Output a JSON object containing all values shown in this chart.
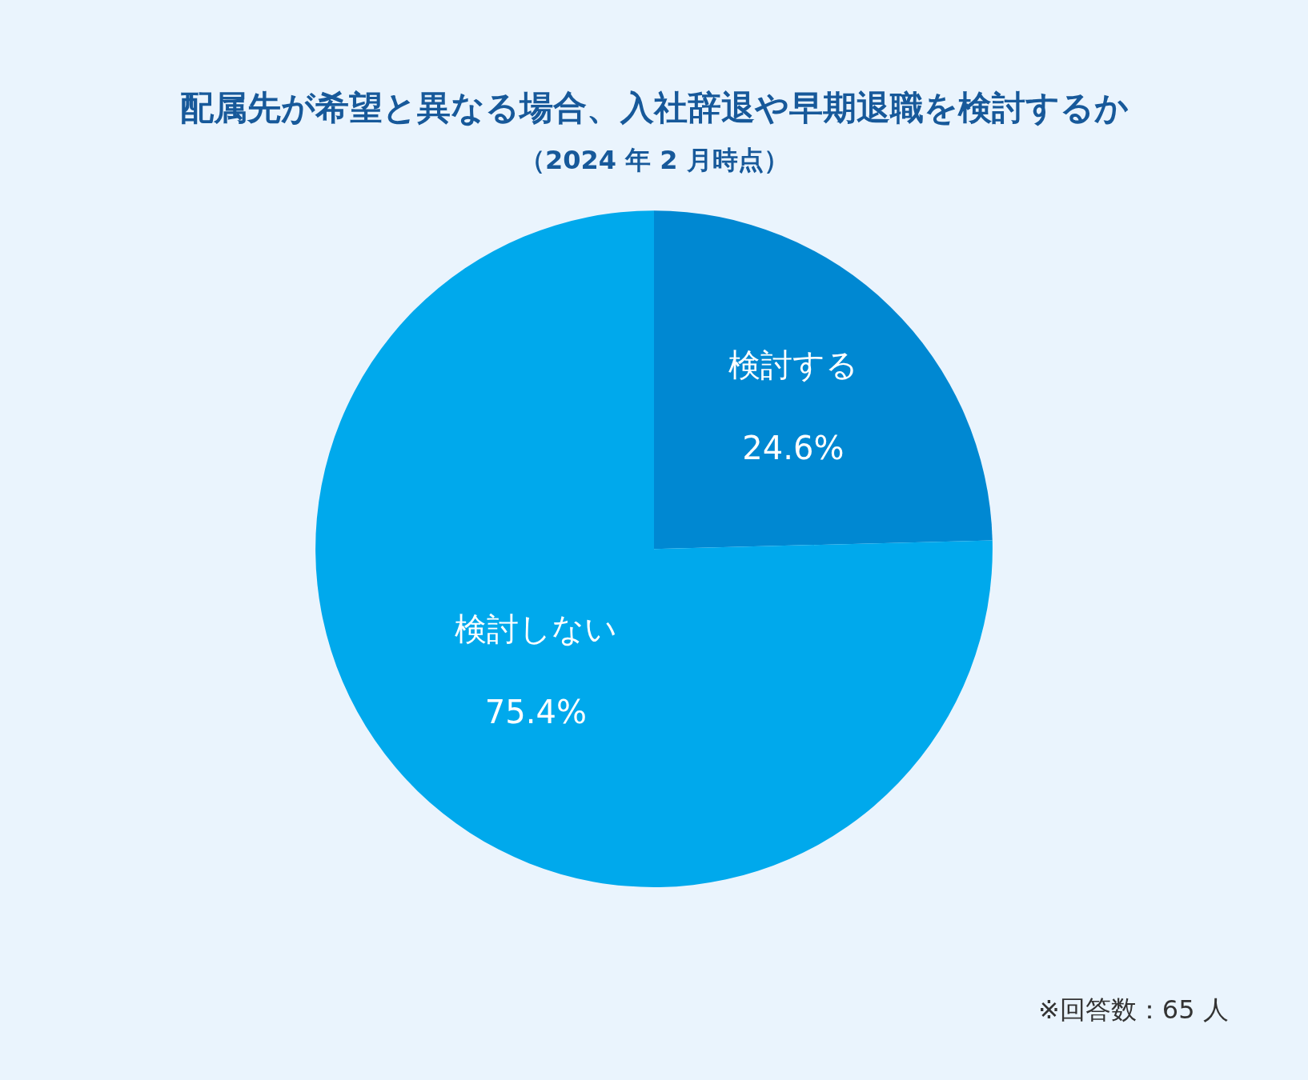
{
  "chart_data": {
    "type": "pie",
    "title": "配属先が希望と異なる場合、入社辞退や早期退職を検討するか",
    "subtitle": "（2024 年 2 月時点）",
    "categories": [
      "検討する",
      "検討しない"
    ],
    "values": [
      24.6,
      75.4
    ],
    "value_labels": [
      "24.6%",
      "75.4%"
    ],
    "colors": [
      "#0088d2",
      "#00a9ec"
    ],
    "annotations": [
      "※回答数：65 人"
    ]
  }
}
